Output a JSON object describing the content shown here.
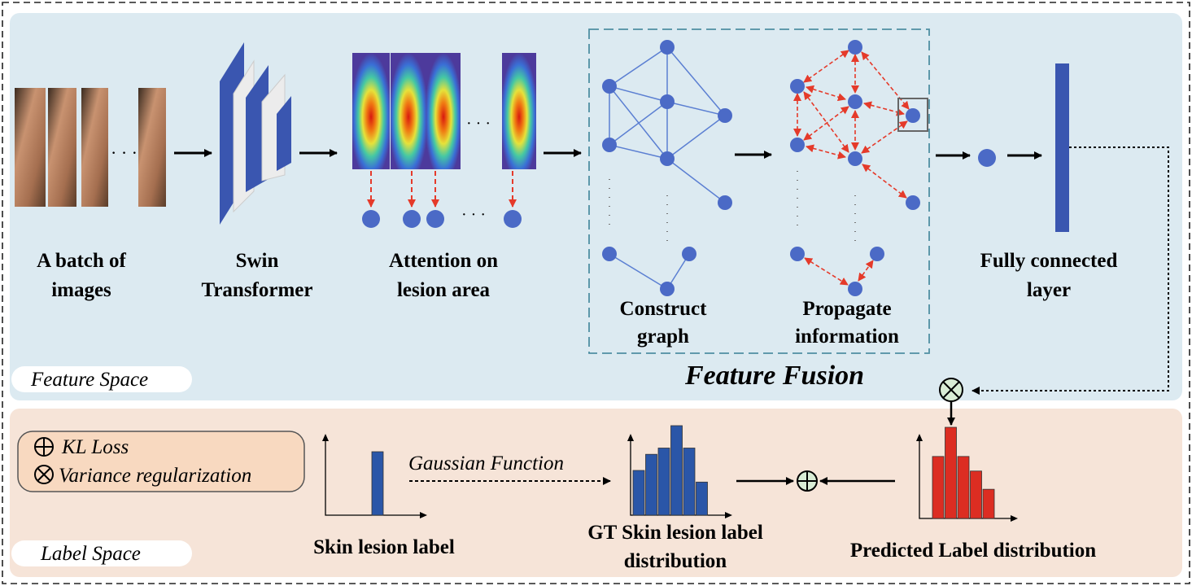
{
  "feature_space": {
    "tag": "Feature Space",
    "input_label": [
      "A batch of",
      "images"
    ],
    "swin_label": [
      "Swin",
      "Transformer"
    ],
    "attention_label": [
      "Attention on",
      "lesion area"
    ],
    "fusion_title": "Feature Fusion",
    "construct_label": [
      "Construct",
      "graph"
    ],
    "propagate_label": [
      "Propagate",
      "information"
    ],
    "fc_label": [
      "Fully connected",
      "layer"
    ],
    "ellipsis": "· · ·"
  },
  "label_space": {
    "tag": "Label Space",
    "legend_kl": "KL Loss",
    "legend_var": "Variance regularization",
    "skin_label": "Skin lesion label",
    "gaussian_label": "Gaussian Function",
    "gt_label": [
      "GT Skin lesion label",
      "distribution"
    ],
    "pred_label": "Predicted Label distribution"
  },
  "colors": {
    "feature_bg": "#dceaf1",
    "label_bg": "#f6e4d8",
    "node": "#4b6ac6",
    "bar_blue": "#2a56a8",
    "bar_red": "#dc2d22",
    "arrow_red": "#e53a2a",
    "frame_teal": "#4f8fa2"
  },
  "icons": [
    "plus-circle-icon",
    "times-circle-icon"
  ],
  "chart_data": [
    {
      "type": "bar",
      "name": "skin-lesion-label",
      "values": [
        1
      ]
    },
    {
      "type": "bar",
      "name": "gt-distribution",
      "values": [
        0.5,
        0.68,
        0.75,
        1.0,
        0.75,
        0.37
      ]
    },
    {
      "type": "bar",
      "name": "predicted-distribution",
      "values": [
        0.68,
        1.0,
        0.68,
        0.52,
        0.32
      ]
    }
  ]
}
